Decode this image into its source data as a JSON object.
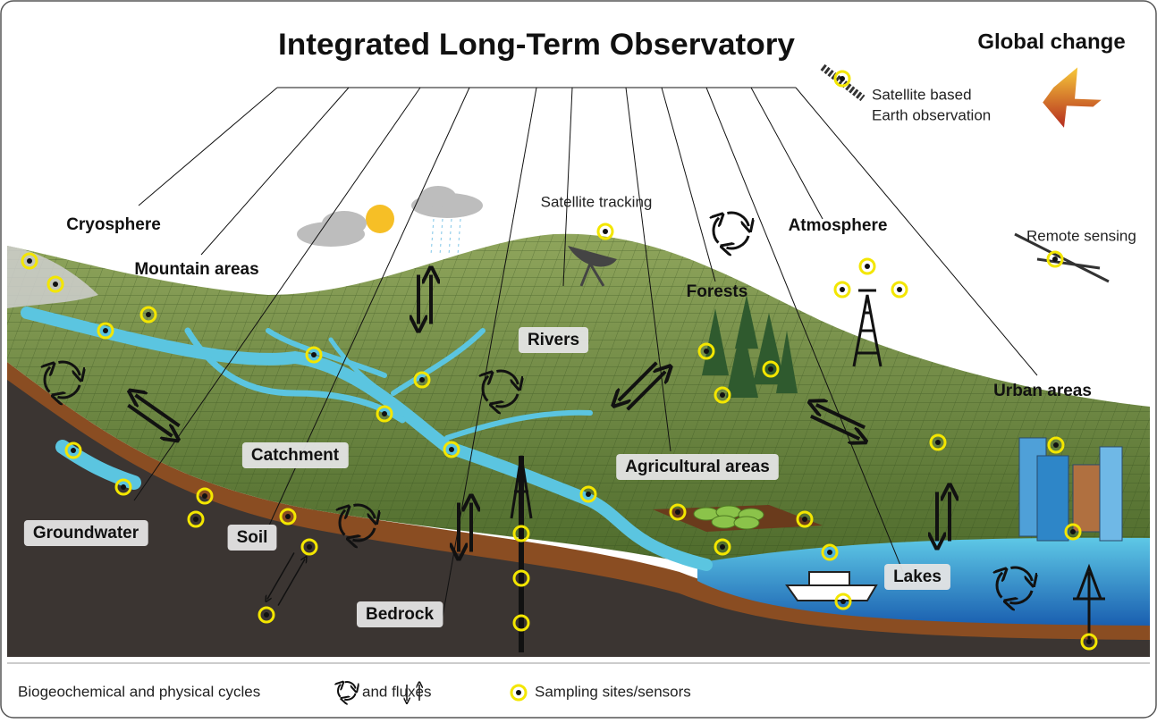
{
  "header": {
    "title": "Integrated Long-Term Observatory",
    "side_title": "Global change"
  },
  "notes": {
    "satellite": [
      "Satellite based",
      "Earth observation"
    ],
    "tracking": "Satellite tracking",
    "remote": "Remote sensing"
  },
  "labels": [
    "Cryosphere",
    "Mountain areas",
    "Rivers",
    "Forests",
    "Atmosphere",
    "Urban areas",
    "Catchment",
    "Agricultural areas",
    "Groundwater",
    "Soil",
    "Bedrock",
    "Lakes"
  ],
  "legend": {
    "cycles": "Biogeochemical and physical cycles",
    "fluxes": "and fluxes",
    "sensors": "Sampling sites/sensors"
  }
}
